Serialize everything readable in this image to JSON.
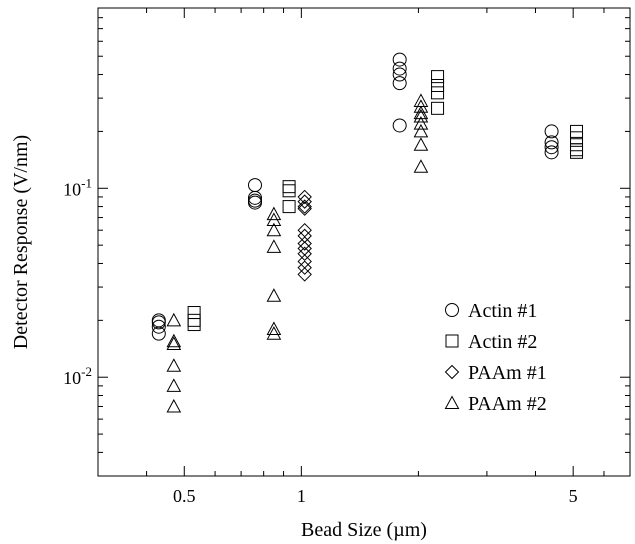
{
  "chart_data": {
    "type": "scatter",
    "xscale": "log",
    "yscale": "log",
    "xlim": [
      0.3,
      7
    ],
    "ylim": [
      0.003,
      0.9
    ],
    "xlabel": "Bead Size (µm)",
    "ylabel": "Detector Response (V/nm)",
    "xticks": [
      {
        "value": 0.5,
        "label": "0.5"
      },
      {
        "value": 1,
        "label": "1"
      },
      {
        "value": 5,
        "label": "5"
      }
    ],
    "yticks": [
      {
        "value": 0.01,
        "base": "10",
        "exp": "-2"
      },
      {
        "value": 0.1,
        "base": "10",
        "exp": "-1"
      }
    ],
    "grid": false,
    "legend_position": "lower-right",
    "series": [
      {
        "name": "Actin #1",
        "marker": "circle",
        "points": [
          [
            0.43,
            0.0195
          ],
          [
            0.43,
            0.0185
          ],
          [
            0.43,
            0.017
          ],
          [
            0.43,
            0.02
          ],
          [
            0.76,
            0.104
          ],
          [
            0.76,
            0.089
          ],
          [
            0.76,
            0.086
          ],
          [
            0.76,
            0.084
          ],
          [
            1.79,
            0.48
          ],
          [
            1.79,
            0.43
          ],
          [
            1.79,
            0.4
          ],
          [
            1.79,
            0.36
          ],
          [
            1.79,
            0.215
          ],
          [
            4.4,
            0.2
          ],
          [
            4.4,
            0.175
          ],
          [
            4.4,
            0.165
          ],
          [
            4.4,
            0.155
          ]
        ]
      },
      {
        "name": "Actin #2",
        "marker": "square",
        "points": [
          [
            0.53,
            0.022
          ],
          [
            0.53,
            0.02
          ],
          [
            0.53,
            0.019
          ],
          [
            0.93,
            0.102
          ],
          [
            0.93,
            0.097
          ],
          [
            0.93,
            0.08
          ],
          [
            2.24,
            0.39
          ],
          [
            2.24,
            0.35
          ],
          [
            2.24,
            0.32
          ],
          [
            2.24,
            0.265
          ],
          [
            5.1,
            0.2
          ],
          [
            5.1,
            0.185
          ],
          [
            5.1,
            0.17
          ],
          [
            5.1,
            0.16
          ],
          [
            5.1,
            0.155
          ]
        ]
      },
      {
        "name": "PAAm #1",
        "marker": "diamond",
        "points": [
          [
            1.02,
            0.09
          ],
          [
            1.02,
            0.085
          ],
          [
            1.02,
            0.08
          ],
          [
            1.02,
            0.078
          ],
          [
            1.02,
            0.06
          ],
          [
            1.02,
            0.056
          ],
          [
            1.02,
            0.051
          ],
          [
            1.02,
            0.048
          ],
          [
            1.02,
            0.045
          ],
          [
            1.02,
            0.041
          ],
          [
            1.02,
            0.038
          ],
          [
            1.02,
            0.035
          ]
        ]
      },
      {
        "name": "PAAm #2",
        "marker": "triangle",
        "points": [
          [
            0.47,
            0.02
          ],
          [
            0.47,
            0.0155
          ],
          [
            0.47,
            0.015
          ],
          [
            0.47,
            0.0115
          ],
          [
            0.47,
            0.009
          ],
          [
            0.47,
            0.007
          ],
          [
            0.85,
            0.073
          ],
          [
            0.85,
            0.068
          ],
          [
            0.85,
            0.06
          ],
          [
            0.85,
            0.049
          ],
          [
            0.85,
            0.027
          ],
          [
            0.85,
            0.018
          ],
          [
            0.85,
            0.017
          ],
          [
            2.03,
            0.29
          ],
          [
            2.03,
            0.27
          ],
          [
            2.03,
            0.25
          ],
          [
            2.03,
            0.24
          ],
          [
            2.03,
            0.22
          ],
          [
            2.03,
            0.2
          ],
          [
            2.03,
            0.17
          ],
          [
            2.03,
            0.13
          ]
        ]
      }
    ]
  }
}
